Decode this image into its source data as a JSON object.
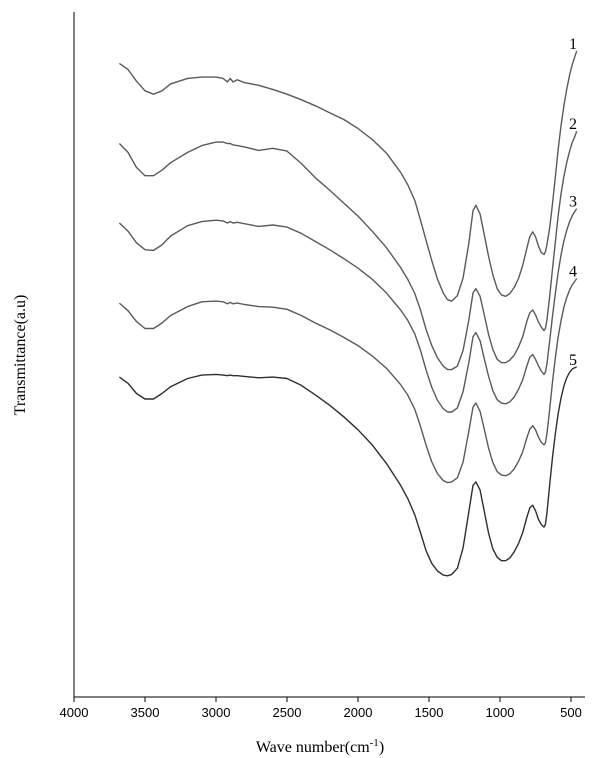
{
  "chart_data": {
    "type": "line",
    "xlabel": "Wave number(cm",
    "xlabel_sup": "-1",
    "xlabel_end": ")",
    "ylabel": "Transmittance(a.u)",
    "xlim": [
      4000,
      450
    ],
    "ylim": [
      0,
      100
    ],
    "x_reversed": true,
    "y_ticks_shown": false,
    "grid": false,
    "legend": "none",
    "x_ticks": [
      4000,
      3500,
      3000,
      2500,
      2000,
      1500,
      1000,
      500
    ],
    "x_tick_labels": [
      "4000",
      "3500",
      "3000",
      "2500",
      "2000",
      "1500",
      "1000",
      "500"
    ],
    "series_color": "#5a5a5a",
    "series": [
      {
        "name": "1",
        "x": [
          3680,
          3620,
          3560,
          3500,
          3440,
          3380,
          3320,
          3200,
          3100,
          3000,
          2950,
          2920,
          2900,
          2880,
          2850,
          2800,
          2700,
          2600,
          2500,
          2400,
          2300,
          2200,
          2100,
          2000,
          1900,
          1800,
          1700,
          1650,
          1600,
          1560,
          1520,
          1480,
          1440,
          1400,
          1370,
          1340,
          1300,
          1260,
          1220,
          1190,
          1170,
          1140,
          1110,
          1080,
          1050,
          1020,
          990,
          960,
          930,
          900,
          870,
          840,
          810,
          790,
          770,
          750,
          730,
          710,
          690,
          680,
          670,
          650,
          630,
          610,
          590,
          570,
          550,
          530,
          510,
          490,
          470,
          460
        ],
        "y": [
          92.5,
          91.6,
          89.9,
          88.5,
          88.0,
          88.5,
          89.5,
          90.3,
          90.5,
          90.5,
          90.3,
          89.8,
          90.3,
          89.8,
          90.1,
          89.7,
          89.3,
          88.7,
          88.0,
          87.2,
          86.3,
          85.3,
          84.3,
          83.0,
          81.4,
          79.4,
          76.6,
          74.8,
          72.5,
          69.6,
          66.6,
          63.7,
          61.0,
          59.0,
          58.0,
          57.8,
          58.6,
          61.2,
          66.2,
          71.0,
          71.8,
          70.5,
          67.4,
          64.3,
          61.6,
          59.6,
          58.7,
          58.5,
          58.9,
          59.8,
          61.1,
          63.0,
          65.6,
          67.2,
          67.9,
          67.2,
          65.9,
          64.9,
          64.6,
          65.0,
          66.0,
          68.5,
          72.0,
          76.0,
          80.0,
          83.5,
          86.3,
          88.7,
          90.8,
          92.4,
          93.7,
          94.3
        ]
      },
      {
        "name": "2",
        "x": [
          3680,
          3620,
          3560,
          3500,
          3440,
          3380,
          3320,
          3200,
          3100,
          3000,
          2950,
          2920,
          2900,
          2880,
          2850,
          2800,
          2700,
          2600,
          2500,
          2400,
          2300,
          2200,
          2100,
          2000,
          1900,
          1800,
          1700,
          1650,
          1600,
          1560,
          1520,
          1480,
          1440,
          1400,
          1370,
          1340,
          1300,
          1260,
          1220,
          1190,
          1170,
          1140,
          1110,
          1080,
          1050,
          1020,
          990,
          960,
          930,
          900,
          870,
          840,
          810,
          790,
          770,
          750,
          730,
          710,
          690,
          680,
          670,
          650,
          630,
          610,
          590,
          570,
          550,
          530,
          510,
          490,
          470,
          460
        ],
        "y": [
          80.8,
          79.5,
          77.3,
          76.1,
          76.1,
          76.9,
          78.0,
          79.5,
          80.5,
          81.0,
          81.0,
          80.8,
          80.8,
          80.6,
          80.5,
          80.3,
          79.8,
          80.1,
          79.7,
          77.9,
          75.8,
          74.0,
          72.1,
          70.2,
          68.0,
          65.6,
          62.7,
          61.0,
          58.9,
          56.5,
          53.6,
          51.3,
          49.5,
          48.3,
          47.8,
          47.8,
          48.3,
          50.6,
          55.0,
          59.0,
          59.6,
          58.5,
          55.7,
          52.9,
          50.7,
          49.3,
          48.8,
          48.8,
          49.2,
          49.9,
          51.1,
          52.6,
          54.9,
          56.1,
          56.5,
          55.8,
          54.8,
          54.0,
          53.5,
          53.8,
          55.0,
          58.5,
          62.5,
          66.5,
          70.3,
          73.5,
          76.0,
          78.0,
          79.7,
          81.0,
          82.0,
          82.6
        ]
      },
      {
        "name": "3",
        "x": [
          3680,
          3620,
          3560,
          3500,
          3440,
          3380,
          3320,
          3200,
          3100,
          3000,
          2950,
          2920,
          2900,
          2880,
          2850,
          2800,
          2700,
          2600,
          2500,
          2400,
          2300,
          2200,
          2100,
          2000,
          1900,
          1800,
          1700,
          1650,
          1600,
          1560,
          1520,
          1480,
          1440,
          1400,
          1370,
          1340,
          1300,
          1260,
          1220,
          1190,
          1170,
          1140,
          1110,
          1080,
          1050,
          1020,
          990,
          960,
          930,
          900,
          870,
          840,
          810,
          790,
          770,
          750,
          730,
          710,
          690,
          680,
          670,
          650,
          630,
          610,
          590,
          570,
          550,
          530,
          510,
          490,
          470,
          460
        ],
        "y": [
          69.2,
          68.0,
          66.3,
          65.3,
          65.2,
          66.0,
          67.3,
          68.8,
          69.4,
          69.6,
          69.5,
          69.2,
          69.4,
          69.2,
          69.3,
          69.1,
          68.7,
          68.9,
          68.6,
          67.7,
          66.5,
          65.3,
          64.0,
          62.6,
          61.0,
          59.0,
          56.5,
          55.0,
          53.0,
          50.6,
          47.7,
          45.2,
          43.3,
          42.1,
          41.6,
          41.6,
          42.2,
          44.6,
          48.8,
          52.6,
          53.2,
          52.0,
          49.3,
          46.8,
          44.7,
          43.4,
          42.9,
          42.8,
          43.1,
          43.8,
          44.9,
          46.3,
          48.4,
          49.6,
          50.0,
          49.3,
          48.4,
          47.6,
          47.1,
          47.4,
          48.6,
          52.0,
          55.6,
          59.0,
          62.0,
          64.6,
          66.6,
          68.1,
          69.4,
          70.3,
          71.0,
          71.3
        ]
      },
      {
        "name": "4",
        "x": [
          3680,
          3620,
          3560,
          3500,
          3440,
          3380,
          3320,
          3200,
          3100,
          3000,
          2950,
          2920,
          2900,
          2880,
          2850,
          2800,
          2700,
          2600,
          2500,
          2400,
          2300,
          2200,
          2100,
          2000,
          1900,
          1800,
          1700,
          1650,
          1600,
          1560,
          1520,
          1480,
          1440,
          1400,
          1370,
          1340,
          1300,
          1260,
          1220,
          1190,
          1170,
          1140,
          1110,
          1080,
          1050,
          1020,
          990,
          960,
          930,
          900,
          870,
          840,
          810,
          790,
          770,
          750,
          730,
          710,
          690,
          680,
          670,
          650,
          630,
          610,
          590,
          570,
          550,
          530,
          510,
          490,
          470,
          460
        ],
        "y": [
          57.5,
          56.4,
          54.8,
          53.8,
          53.8,
          54.6,
          55.7,
          57.0,
          57.7,
          57.8,
          57.7,
          57.4,
          57.6,
          57.4,
          57.5,
          57.3,
          57.0,
          56.9,
          56.6,
          55.7,
          54.6,
          53.6,
          52.5,
          51.3,
          49.8,
          48.0,
          45.6,
          44.1,
          42.0,
          39.5,
          36.7,
          34.3,
          32.6,
          31.6,
          31.3,
          31.4,
          32.0,
          34.3,
          38.8,
          42.3,
          42.9,
          41.7,
          39.0,
          36.3,
          34.2,
          32.9,
          32.4,
          32.3,
          32.6,
          33.3,
          34.4,
          35.8,
          37.9,
          39.1,
          39.6,
          39.0,
          38.0,
          37.2,
          36.8,
          37.1,
          38.4,
          42.0,
          46.0,
          49.6,
          52.6,
          55.0,
          56.9,
          58.3,
          59.4,
          60.2,
          60.8,
          61.1
        ]
      },
      {
        "name": "5",
        "x": [
          3680,
          3620,
          3560,
          3500,
          3440,
          3380,
          3320,
          3200,
          3100,
          3000,
          2950,
          2920,
          2900,
          2880,
          2850,
          2800,
          2700,
          2600,
          2500,
          2400,
          2300,
          2200,
          2100,
          2000,
          1900,
          1800,
          1700,
          1650,
          1600,
          1560,
          1520,
          1480,
          1440,
          1400,
          1370,
          1340,
          1300,
          1260,
          1220,
          1190,
          1170,
          1140,
          1110,
          1080,
          1050,
          1020,
          990,
          960,
          930,
          900,
          870,
          840,
          810,
          790,
          770,
          750,
          730,
          710,
          690,
          680,
          670,
          650,
          630,
          610,
          590,
          570,
          550,
          530,
          510,
          490,
          470,
          460
        ],
        "y": [
          46.7,
          45.8,
          44.3,
          43.5,
          43.5,
          44.3,
          45.3,
          46.5,
          47.0,
          47.1,
          47.0,
          46.9,
          47.0,
          46.9,
          46.9,
          46.8,
          46.6,
          46.7,
          46.5,
          45.5,
          44.1,
          42.6,
          40.9,
          39.0,
          36.8,
          34.1,
          30.9,
          29.0,
          26.6,
          24.0,
          21.3,
          19.5,
          18.4,
          17.8,
          17.7,
          17.9,
          18.8,
          21.8,
          27.0,
          30.9,
          31.4,
          30.2,
          27.0,
          23.9,
          21.6,
          20.4,
          19.9,
          19.9,
          20.3,
          21.2,
          22.4,
          24.0,
          26.3,
          27.6,
          28.0,
          27.2,
          26.0,
          25.2,
          24.8,
          25.2,
          26.8,
          31.0,
          35.0,
          38.5,
          41.4,
          43.7,
          45.4,
          46.6,
          47.4,
          47.9,
          48.1,
          48.2
        ]
      }
    ],
    "series_labels": [
      {
        "text": "1",
        "at_series": 0
      },
      {
        "text": "2",
        "at_series": 1
      },
      {
        "text": "3",
        "at_series": 2
      },
      {
        "text": "4",
        "at_series": 3
      },
      {
        "text": "5",
        "at_series": 4
      }
    ]
  }
}
